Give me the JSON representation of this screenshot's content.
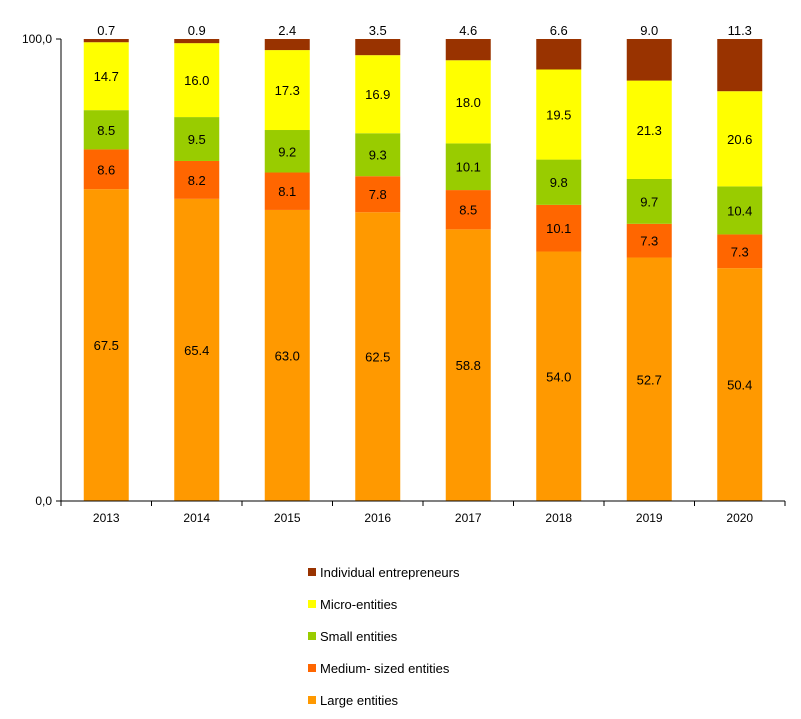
{
  "chart_data": {
    "type": "bar",
    "stacked": true,
    "categories": [
      "2013",
      "2014",
      "2015",
      "2016",
      "2017",
      "2018",
      "2019",
      "2020"
    ],
    "ylim": [
      0,
      100
    ],
    "y_tick_labels": [
      "0,0",
      "100,0"
    ],
    "legend_position": "bottom",
    "series": [
      {
        "name": "Large entities",
        "color": "#FF9900",
        "values": [
          67.5,
          65.4,
          63.0,
          62.5,
          58.8,
          54.0,
          52.7,
          50.4
        ]
      },
      {
        "name": "Medium- sized entities",
        "color": "#FF6600",
        "values": [
          8.6,
          8.2,
          8.1,
          7.8,
          8.5,
          10.1,
          7.3,
          7.3
        ]
      },
      {
        "name": "Small entities",
        "color": "#99CC00",
        "values": [
          8.5,
          9.5,
          9.2,
          9.3,
          10.1,
          9.8,
          9.7,
          10.4
        ]
      },
      {
        "name": "Micro-entities",
        "color": "#FFFF00",
        "values": [
          14.7,
          16.0,
          17.3,
          16.9,
          18.0,
          19.5,
          21.3,
          20.6
        ]
      },
      {
        "name": "Individual entrepreneurs",
        "color": "#993300",
        "values": [
          0.7,
          0.9,
          2.4,
          3.5,
          4.6,
          6.6,
          9.0,
          11.3
        ]
      }
    ],
    "value_labels": [
      [
        "67.5",
        "65.4",
        "63.0",
        "62.5",
        "58.8",
        "54.0",
        "52.7",
        "50.4"
      ],
      [
        "8.6",
        "8.2",
        "8.1",
        "7.8",
        "8.5",
        "10.1",
        "7.3",
        "7.3"
      ],
      [
        "8.5",
        "9.5",
        "9.2",
        "9.3",
        "10.1",
        "9.8",
        "9.7",
        "10.4"
      ],
      [
        "14.7",
        "16.0",
        "17.3",
        "16.9",
        "18.0",
        "19.5",
        "21.3",
        "20.6"
      ],
      [
        "0.7",
        "0.9",
        "2.4",
        "3.5",
        "4.6",
        "6.6",
        "9.0",
        "11.3"
      ]
    ],
    "legend_order": [
      "Individual entrepreneurs",
      "Micro-entities",
      "Small entities",
      "Medium- sized entities",
      "Large entities"
    ]
  }
}
